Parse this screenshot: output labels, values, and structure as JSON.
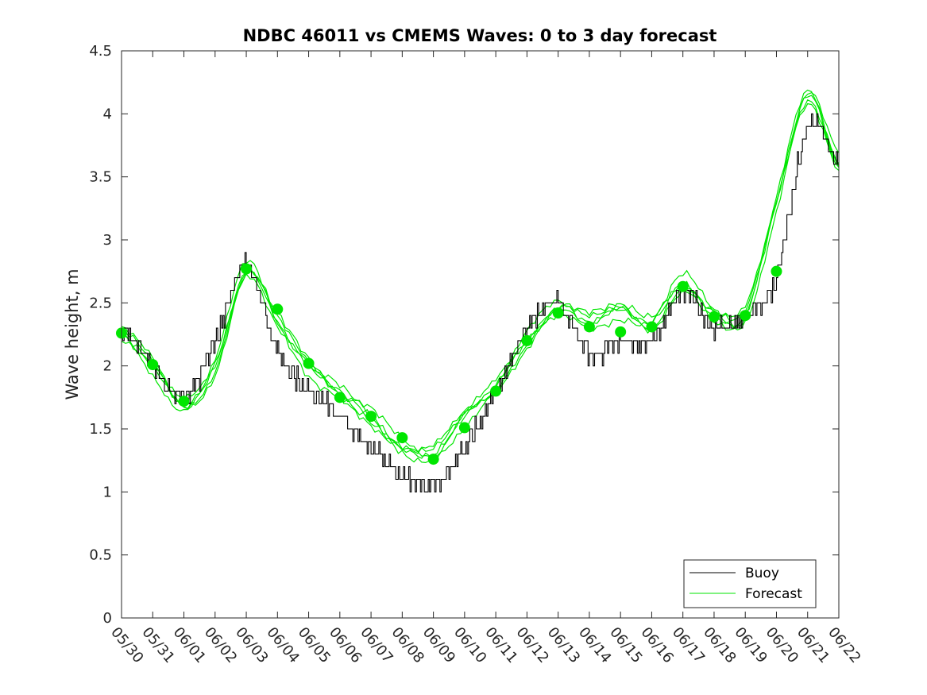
{
  "chart_data": {
    "type": "line",
    "title": "NDBC 46011 vs CMEMS Waves: 0 to 3 day forecast",
    "xlabel": "",
    "ylabel": "Wave height, m",
    "ylim": [
      0,
      4.5
    ],
    "yticks": [
      "0",
      "0.5",
      "1",
      "1.5",
      "2",
      "2.5",
      "3",
      "3.5",
      "4",
      "4.5"
    ],
    "xticks": [
      "05/30",
      "05/31",
      "06/01",
      "06/02",
      "06/03",
      "06/04",
      "06/05",
      "06/06",
      "06/07",
      "06/08",
      "06/09",
      "06/10",
      "06/11",
      "06/12",
      "06/13",
      "06/14",
      "06/15",
      "06/16",
      "06/17",
      "06/18",
      "06/19",
      "06/20",
      "06/21",
      "06/22"
    ],
    "grid": false,
    "legend_position": "bottom-right",
    "colors": {
      "buoy": "#000000",
      "forecast": "#00e600"
    },
    "series": [
      {
        "name": "Buoy",
        "x": [
          "05/30",
          "05/31",
          "06/01",
          "06/02",
          "06/03",
          "06/04",
          "06/05",
          "06/06",
          "06/07",
          "06/08",
          "06/09",
          "06/10",
          "06/11",
          "06/12",
          "06/13",
          "06/14",
          "06/15",
          "06/16",
          "06/17",
          "06/18",
          "06/19",
          "06/20",
          "06/21",
          "06/22"
        ],
        "values": [
          2.3,
          2.0,
          1.75,
          2.2,
          2.8,
          2.1,
          1.8,
          1.6,
          1.35,
          1.15,
          1.05,
          1.35,
          1.8,
          2.3,
          2.5,
          2.1,
          2.2,
          2.2,
          2.6,
          2.3,
          2.4,
          2.7,
          3.9,
          3.6
        ]
      },
      {
        "name": "Forecast",
        "x": [
          "05/30",
          "05/31",
          "06/01",
          "06/02",
          "06/03",
          "06/04",
          "06/05",
          "06/06",
          "06/07",
          "06/08",
          "06/09",
          "06/10",
          "06/11",
          "06/12",
          "06/13",
          "06/14",
          "06/15",
          "06/16",
          "06/17",
          "06/18",
          "06/19",
          "06/20",
          "06/21",
          "06/22"
        ],
        "values": [
          2.25,
          2.0,
          1.7,
          2.0,
          2.75,
          2.35,
          2.0,
          1.8,
          1.6,
          1.35,
          1.3,
          1.6,
          1.85,
          2.2,
          2.45,
          2.35,
          2.45,
          2.35,
          2.65,
          2.4,
          2.4,
          3.3,
          4.15,
          3.6
        ]
      }
    ],
    "daily_markers": {
      "x": [
        "05/30",
        "05/31",
        "06/01",
        "06/02",
        "06/03",
        "06/04",
        "06/05",
        "06/06",
        "06/07",
        "06/08",
        "06/09",
        "06/10",
        "06/11",
        "06/12",
        "06/13",
        "06/14",
        "06/15",
        "06/16",
        "06/17",
        "06/18",
        "06/19",
        "06/20"
      ],
      "values": [
        2.26,
        2.01,
        1.72,
        null,
        2.77,
        2.45,
        2.02,
        1.75,
        1.6,
        1.43,
        1.26,
        1.51,
        1.8,
        2.2,
        2.42,
        2.31,
        2.27,
        2.31,
        2.63,
        2.39,
        2.4,
        2.75
      ]
    }
  }
}
